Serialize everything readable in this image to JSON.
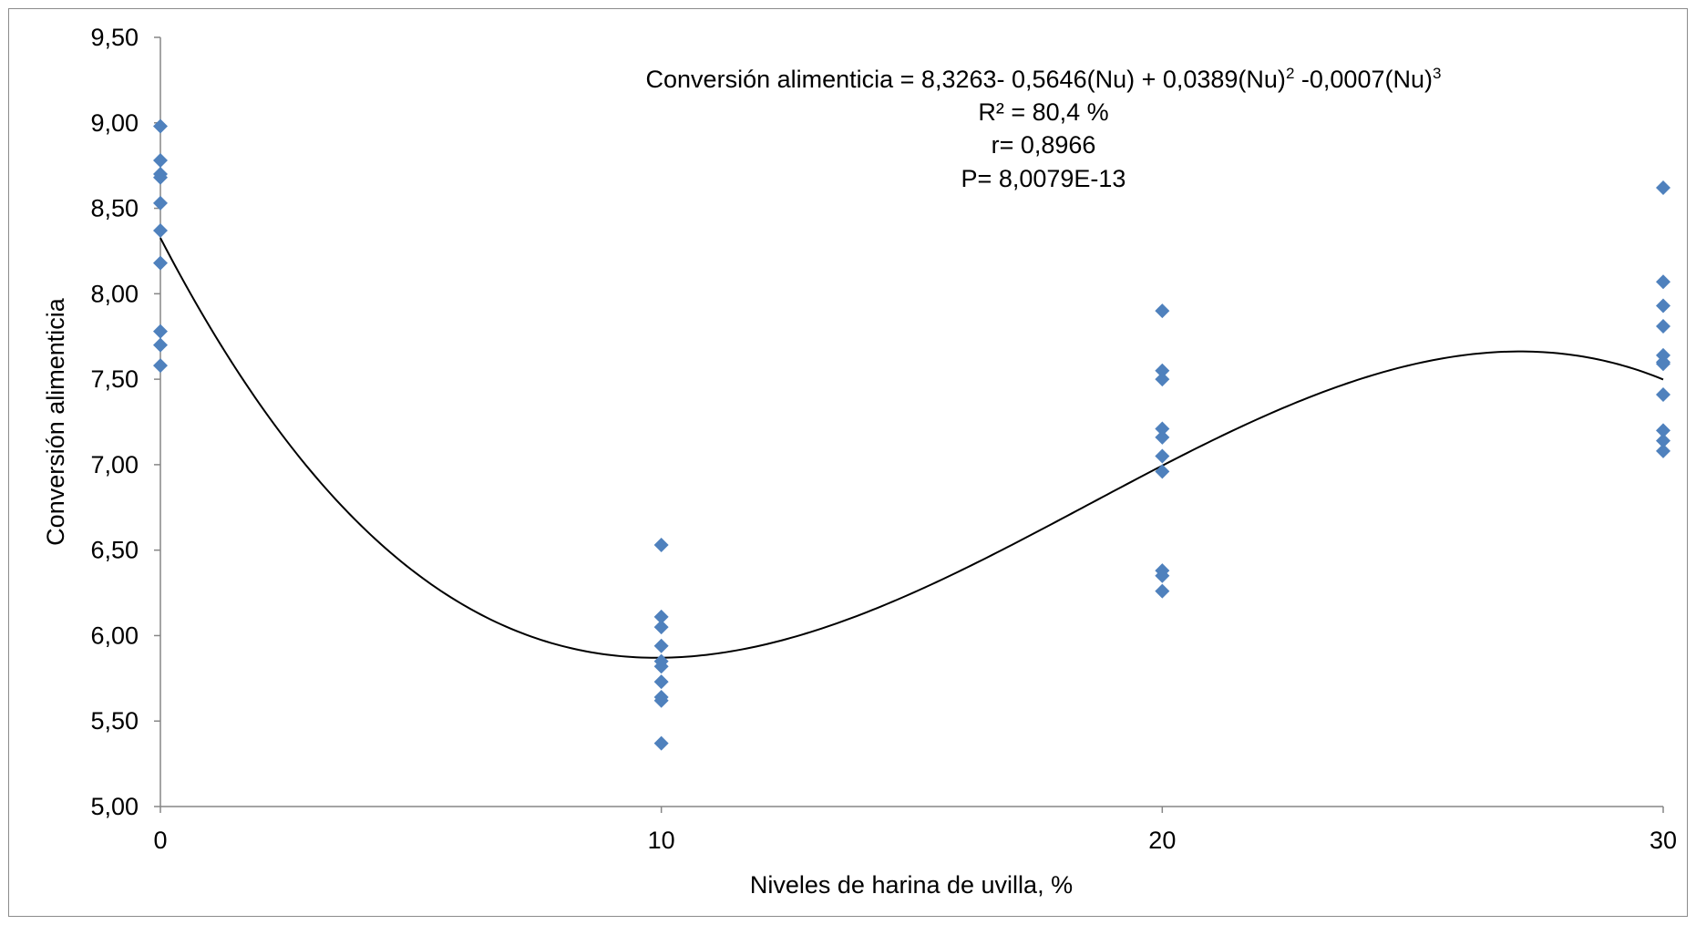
{
  "chart_data": {
    "type": "scatter",
    "xlabel": "Niveles de harina de uvilla, %",
    "ylabel": "Conversión alimenticia",
    "xlim": [
      0,
      30
    ],
    "ylim": [
      5.0,
      9.5
    ],
    "x_ticks": [
      0,
      10,
      20,
      30
    ],
    "x_tick_labels": [
      "0",
      "10",
      "20",
      "30"
    ],
    "y_ticks": [
      5.0,
      5.5,
      6.0,
      6.5,
      7.0,
      7.5,
      8.0,
      8.5,
      9.0,
      9.5
    ],
    "y_tick_labels": [
      "5,00",
      "5,50",
      "6,00",
      "6,50",
      "7,00",
      "7,50",
      "8,00",
      "8,50",
      "9,00",
      "9,50"
    ],
    "grid": false,
    "legend": "none",
    "marker": "diamond",
    "colors": {
      "marker": "#4f81bd",
      "trendline": "#000000",
      "axis": "#868686"
    },
    "series": [
      {
        "x": [
          0,
          0,
          0,
          0,
          0,
          0,
          0,
          0,
          0,
          0
        ],
        "y": [
          8.98,
          8.78,
          8.7,
          8.68,
          8.53,
          8.37,
          8.18,
          7.78,
          7.7,
          7.58
        ]
      },
      {
        "x": [
          10,
          10,
          10,
          10,
          10,
          10,
          10,
          10,
          10,
          10
        ],
        "y": [
          6.53,
          6.11,
          6.05,
          5.94,
          5.85,
          5.82,
          5.73,
          5.64,
          5.62,
          5.37
        ]
      },
      {
        "x": [
          20,
          20,
          20,
          20,
          20,
          20,
          20,
          20,
          20,
          20
        ],
        "y": [
          7.9,
          7.55,
          7.5,
          7.21,
          7.16,
          7.05,
          6.96,
          6.38,
          6.35,
          6.26
        ]
      },
      {
        "x": [
          30,
          30,
          30,
          30,
          30,
          30,
          30,
          30,
          30,
          30,
          30
        ],
        "y": [
          8.62,
          8.07,
          7.93,
          7.81,
          7.64,
          7.6,
          7.41,
          7.2,
          7.14,
          7.08,
          7.59
        ]
      }
    ],
    "trendline": {
      "type": "polynomial",
      "coefficients": [
        8.3263,
        -0.5646,
        0.0389,
        -0.0007
      ]
    },
    "annotations": {
      "equation_main": "Conversión alimenticia = 8,3263- 0,5646(Nu) + 0,0389(Nu)",
      "equation_sup1": "2",
      "equation_mid": " -0,0007(Nu)",
      "equation_sup2": "3",
      "r_squared": "R² = 80,4 %",
      "r": "r= 0,8966",
      "p": "P= 8,0079E-13"
    }
  }
}
